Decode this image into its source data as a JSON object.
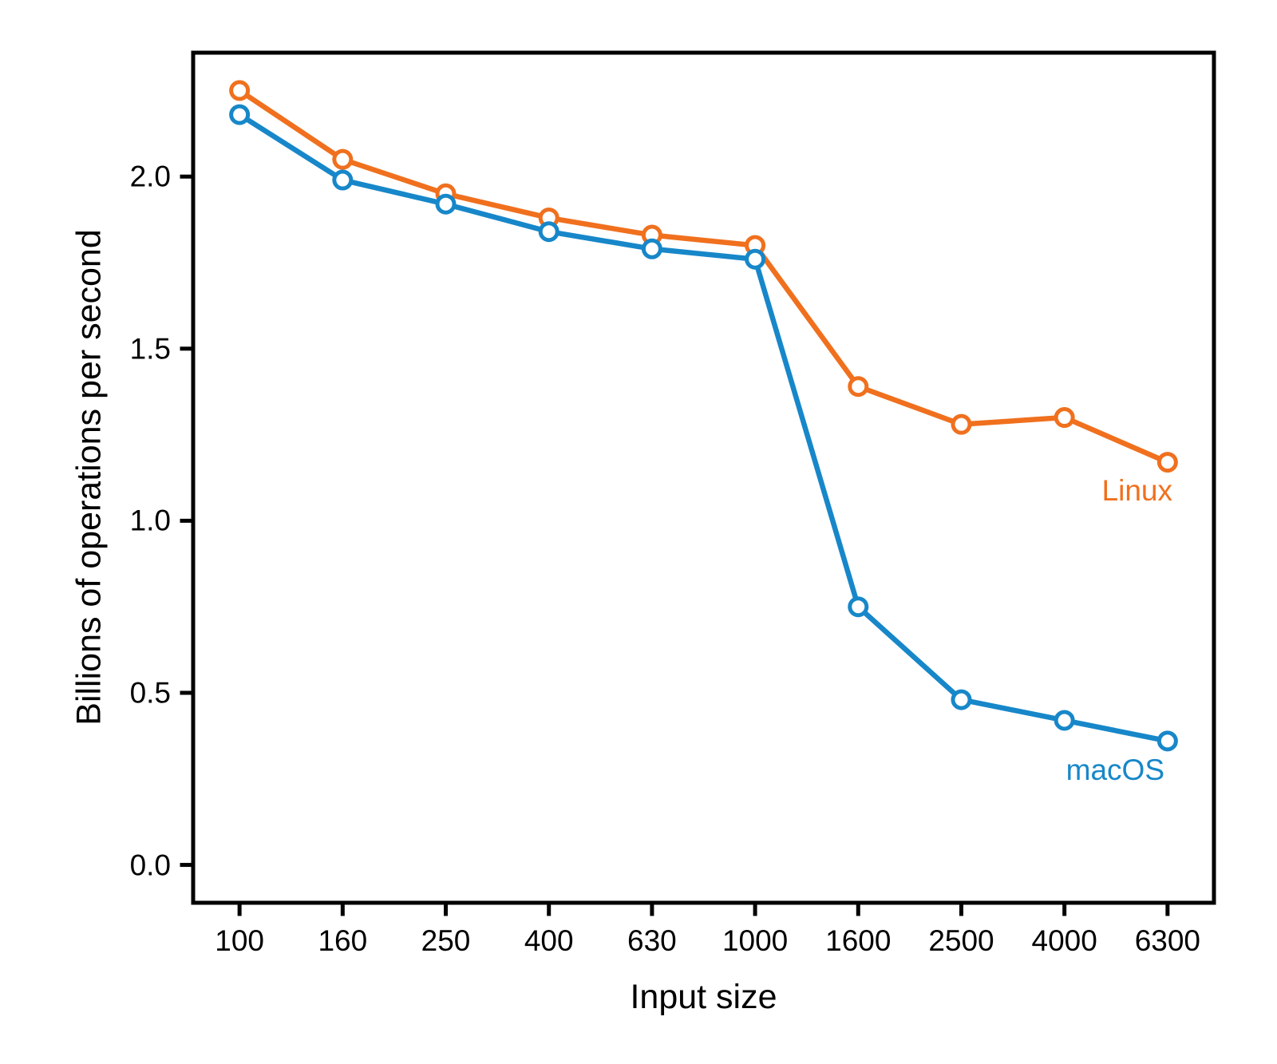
{
  "chart_data": {
    "type": "line",
    "title": "",
    "xlabel": "Input size",
    "ylabel": "Billions of operations per second",
    "categories": [
      "100",
      "160",
      "250",
      "400",
      "630",
      "1000",
      "1600",
      "2500",
      "4000",
      "6300"
    ],
    "x_scale": "log-spaced categories",
    "y_ticks": [
      0.0,
      0.5,
      1.0,
      1.5,
      2.0
    ],
    "y_tick_labels": [
      "0.0",
      "0.5",
      "1.0",
      "1.5",
      "2.0"
    ],
    "ylim": [
      -0.11,
      2.36
    ],
    "xlim": [
      -0.45,
      9.45
    ],
    "grid": false,
    "legend_position": "direct labels at line ends",
    "axis_color": "#000000",
    "marker": "open-circle",
    "marker_fill": "#ffffff",
    "series": [
      {
        "name": "Linux",
        "color": "#F0701E",
        "values": [
          2.25,
          2.05,
          1.95,
          1.88,
          1.83,
          1.8,
          1.39,
          1.28,
          1.3,
          1.17
        ]
      },
      {
        "name": "macOS",
        "color": "#1787C9",
        "values": [
          2.18,
          1.99,
          1.92,
          1.84,
          1.79,
          1.76,
          0.75,
          0.48,
          0.42,
          0.36
        ]
      }
    ]
  }
}
